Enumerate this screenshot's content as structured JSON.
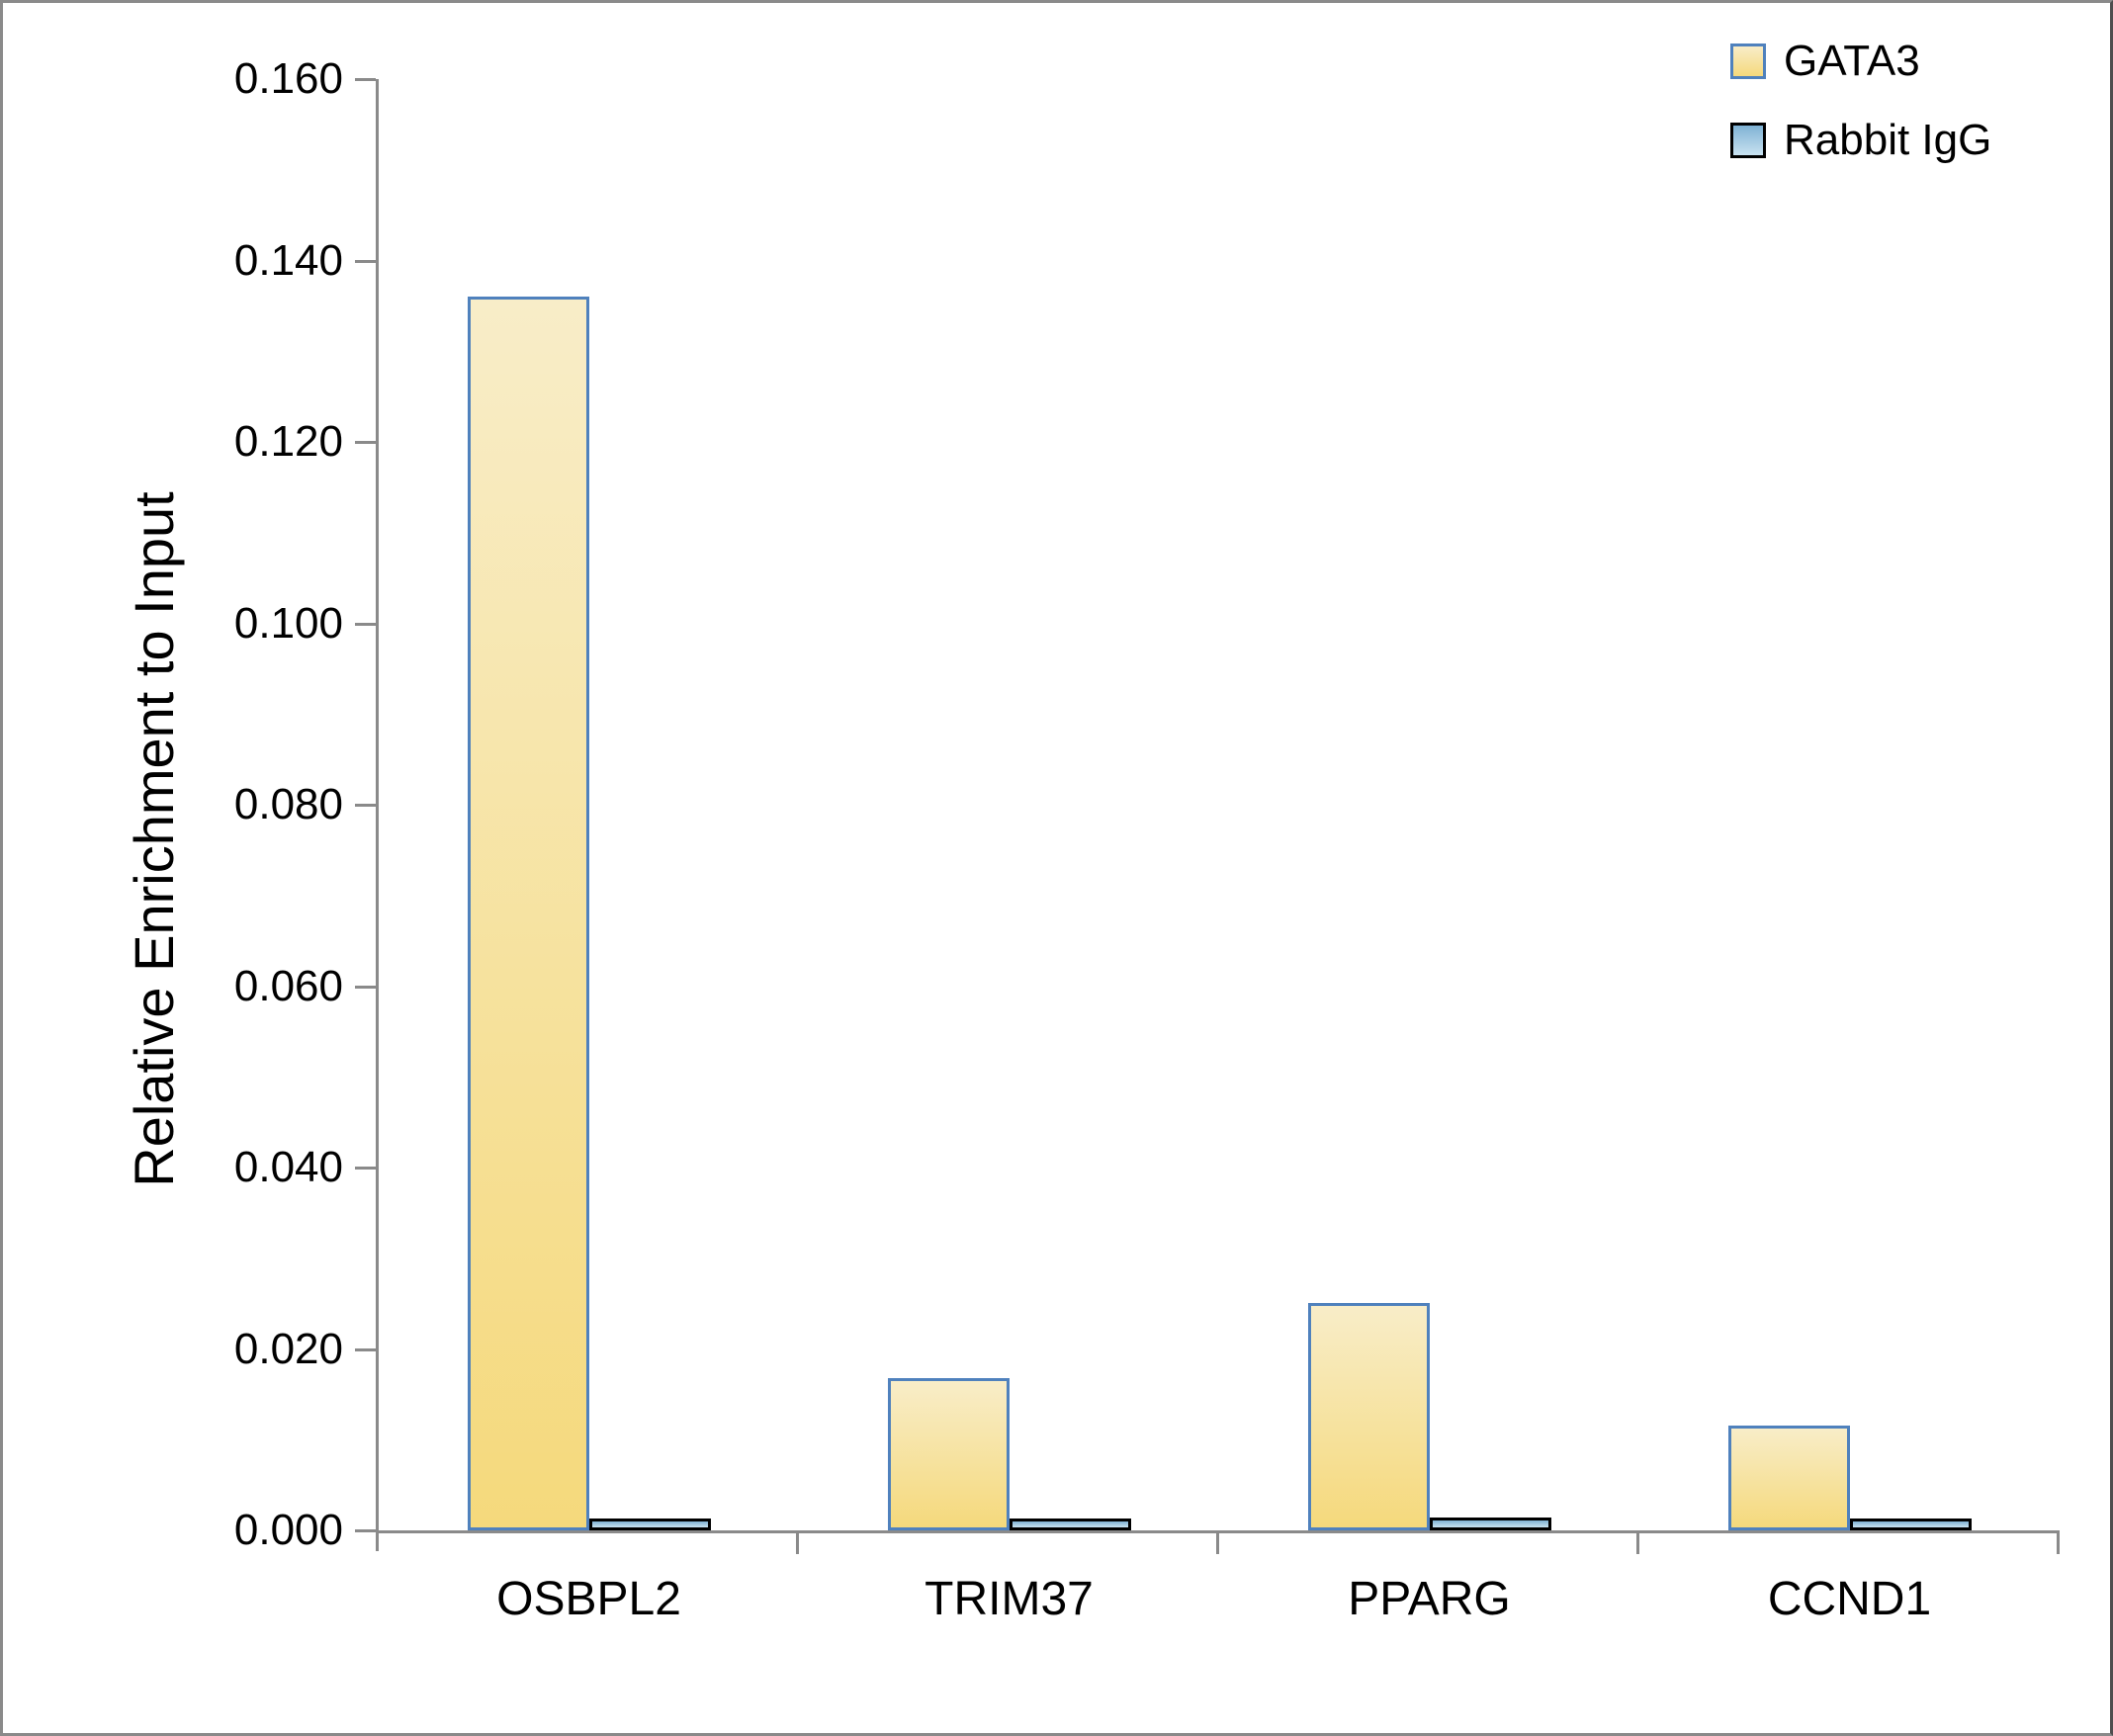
{
  "figure": {
    "background": "#ffffff",
    "frame_border_color": "#8a8a8a",
    "axis_color": "#8a8a8a",
    "text_color": "#000000"
  },
  "chart_data": {
    "type": "bar",
    "title": "",
    "xlabel": "",
    "ylabel": "Relative Enrichment to Input",
    "categories": [
      "OSBPL2",
      "TRIM37",
      "PPARG",
      "CCND1"
    ],
    "series": [
      {
        "name": "GATA3",
        "values": [
          0.136,
          0.0168,
          0.0251,
          0.0116
        ],
        "fill_top": "#F8EDC8",
        "fill_bottom": "#F5D97C",
        "border": "#4F81BD"
      },
      {
        "name": "Rabbit IgG",
        "values": [
          0.0013,
          0.0013,
          0.0014,
          0.0013
        ],
        "fill_top": "#7FB2D4",
        "fill_bottom": "#C9E2F0",
        "border": "#000000"
      }
    ],
    "ylim": [
      0,
      0.16
    ],
    "ytick_step": 0.02,
    "ytick_labels": [
      "0.000",
      "0.020",
      "0.040",
      "0.060",
      "0.080",
      "0.100",
      "0.120",
      "0.140",
      "0.160"
    ],
    "grid": false,
    "legend_position": "top-right"
  }
}
